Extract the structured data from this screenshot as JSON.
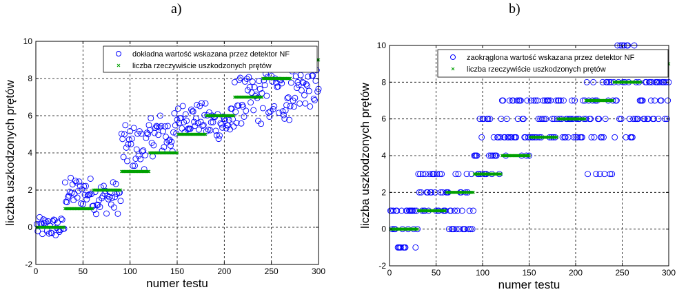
{
  "panel_labels": [
    "a)",
    "b)"
  ],
  "chart_data": [
    {
      "type": "scatter",
      "title": "",
      "xlabel": "numer testu",
      "ylabel": "liczba uszkodzonych prętów",
      "xlim": [
        0,
        300
      ],
      "ylim": [
        -2,
        10
      ],
      "xticks": [
        0,
        50,
        100,
        150,
        200,
        250,
        300
      ],
      "yticks": [
        -2,
        0,
        2,
        4,
        6,
        8,
        10
      ],
      "grid": true,
      "legend_position": "top-right",
      "colors": {
        "estimate": "#0000ff",
        "actual": "#00a000"
      },
      "series": [
        {
          "name": "dokładna wartość wskazana przez detektor NF",
          "marker": "circle",
          "segments": [
            {
              "x0": 1,
              "x1": 30,
              "center": 0.0,
              "spread": 0.55
            },
            {
              "x0": 31,
              "x1": 60,
              "center": 1.9,
              "spread": 0.8
            },
            {
              "x0": 61,
              "x1": 90,
              "center": 1.6,
              "spread": 0.9
            },
            {
              "x0": 91,
              "x1": 120,
              "center": 4.3,
              "spread": 1.2
            },
            {
              "x0": 121,
              "x1": 150,
              "center": 5.0,
              "spread": 1.2
            },
            {
              "x0": 151,
              "x1": 180,
              "center": 5.9,
              "spread": 0.8
            },
            {
              "x0": 181,
              "x1": 210,
              "center": 5.6,
              "spread": 0.9
            },
            {
              "x0": 211,
              "x1": 240,
              "center": 6.8,
              "spread": 1.3
            },
            {
              "x0": 241,
              "x1": 270,
              "center": 7.0,
              "spread": 1.4
            },
            {
              "x0": 271,
              "x1": 300,
              "center": 7.5,
              "spread": 1.1
            }
          ]
        },
        {
          "name": "liczba rzeczywiście uszkodzonych prętów",
          "marker": "x",
          "segments": [
            {
              "x0": 1,
              "x1": 30,
              "y": 0
            },
            {
              "x0": 31,
              "x1": 60,
              "y": 1
            },
            {
              "x0": 61,
              "x1": 90,
              "y": 2
            },
            {
              "x0": 91,
              "x1": 120,
              "y": 3
            },
            {
              "x0": 121,
              "x1": 150,
              "y": 4
            },
            {
              "x0": 151,
              "x1": 180,
              "y": 5
            },
            {
              "x0": 181,
              "x1": 210,
              "y": 6
            },
            {
              "x0": 211,
              "x1": 240,
              "y": 7
            },
            {
              "x0": 241,
              "x1": 270,
              "y": 8
            },
            {
              "x0": 271,
              "x1": 300,
              "y": 9
            }
          ]
        }
      ]
    },
    {
      "type": "scatter",
      "title": "",
      "xlabel": "numer testu",
      "ylabel": "liczba uszkodzonych prętów",
      "xlim": [
        0,
        300
      ],
      "ylim": [
        -2,
        10
      ],
      "xticks": [
        0,
        50,
        100,
        150,
        200,
        250,
        300
      ],
      "yticks": [
        -2,
        0,
        2,
        4,
        6,
        8,
        10
      ],
      "grid": true,
      "legend_position": "top-left",
      "colors": {
        "estimate": "#0000ff",
        "actual": "#00a000"
      },
      "series": [
        {
          "name": "zaokrąglona wartość wskazana przez detektor NF",
          "marker": "circle",
          "segments": [
            {
              "x0": 1,
              "x1": 30,
              "levels": [
                -1,
                0,
                1
              ]
            },
            {
              "x0": 31,
              "x1": 60,
              "levels": [
                1,
                2,
                3
              ]
            },
            {
              "x0": 61,
              "x1": 90,
              "levels": [
                0,
                1,
                2,
                3
              ]
            },
            {
              "x0": 91,
              "x1": 120,
              "levels": [
                3,
                4,
                5,
                6
              ]
            },
            {
              "x0": 121,
              "x1": 150,
              "levels": [
                4,
                5,
                6,
                7
              ]
            },
            {
              "x0": 151,
              "x1": 180,
              "levels": [
                5,
                6,
                7
              ]
            },
            {
              "x0": 181,
              "x1": 210,
              "levels": [
                5,
                6,
                7
              ]
            },
            {
              "x0": 211,
              "x1": 240,
              "levels": [
                3,
                5,
                6,
                7,
                8
              ]
            },
            {
              "x0": 241,
              "x1": 270,
              "levels": [
                5,
                6,
                7,
                8,
                10
              ]
            },
            {
              "x0": 271,
              "x1": 300,
              "levels": [
                6,
                7,
                8
              ]
            }
          ]
        },
        {
          "name": "liczba rzeczywiście uszkodzonych prętów",
          "marker": "x",
          "segments": [
            {
              "x0": 1,
              "x1": 30,
              "y": 0
            },
            {
              "x0": 31,
              "x1": 60,
              "y": 1
            },
            {
              "x0": 61,
              "x1": 90,
              "y": 2
            },
            {
              "x0": 91,
              "x1": 120,
              "y": 3
            },
            {
              "x0": 121,
              "x1": 150,
              "y": 4
            },
            {
              "x0": 151,
              "x1": 180,
              "y": 5
            },
            {
              "x0": 181,
              "x1": 210,
              "y": 6
            },
            {
              "x0": 211,
              "x1": 240,
              "y": 7
            },
            {
              "x0": 241,
              "x1": 270,
              "y": 8
            },
            {
              "x0": 271,
              "x1": 300,
              "y": 9
            }
          ]
        }
      ]
    }
  ]
}
